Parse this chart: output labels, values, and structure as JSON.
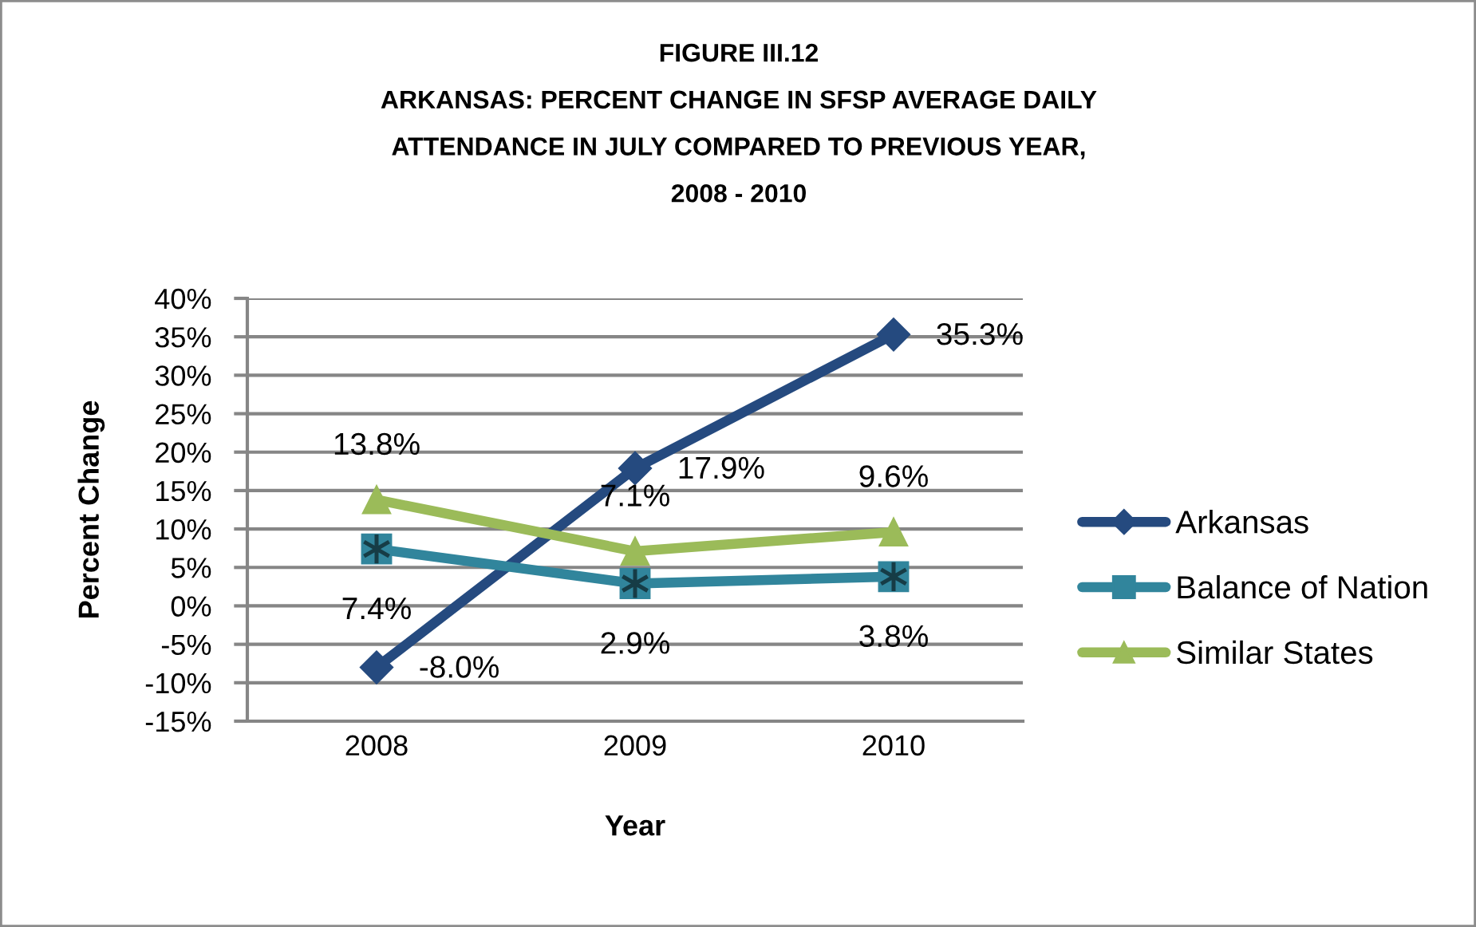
{
  "chart_data": {
    "type": "line",
    "title": "FIGURE III.12\nARKANSAS: PERCENT CHANGE IN SFSP AVERAGE DAILY\nATTENDANCE IN JULY COMPARED TO PREVIOUS YEAR,\n2008 - 2010",
    "xlabel": "Year",
    "ylabel": "Percent Change",
    "categories": [
      "2008",
      "2009",
      "2010"
    ],
    "series": [
      {
        "name": "Arkansas",
        "color": "#254a7f",
        "marker": "diamond",
        "values": [
          -8.0,
          17.9,
          35.3
        ],
        "value_labels": [
          "-8.0%",
          "17.9%",
          "35.3%"
        ]
      },
      {
        "name": "Balance of Nation",
        "color": "#31859c",
        "marker": "square",
        "values": [
          7.4,
          2.9,
          3.8
        ],
        "value_labels": [
          "7.4%",
          "2.9%",
          "3.8%"
        ]
      },
      {
        "name": "Similar States",
        "color": "#9bbb59",
        "marker": "triangle",
        "values": [
          13.8,
          7.1,
          9.6
        ],
        "value_labels": [
          "13.8%",
          "7.1%",
          "9.6%"
        ]
      }
    ],
    "ylim": [
      -15,
      40
    ],
    "yticks": [
      {
        "value": -15,
        "label": "-15%"
      },
      {
        "value": -10,
        "label": "-10%"
      },
      {
        "value": -5,
        "label": "-5%"
      },
      {
        "value": 0,
        "label": "0%"
      },
      {
        "value": 5,
        "label": "5%"
      },
      {
        "value": 10,
        "label": "10%"
      },
      {
        "value": 15,
        "label": "15%"
      },
      {
        "value": 20,
        "label": "20%"
      },
      {
        "value": 25,
        "label": "25%"
      },
      {
        "value": 30,
        "label": "30%"
      },
      {
        "value": 35,
        "label": "35%"
      },
      {
        "value": 40,
        "label": "40%"
      }
    ],
    "grid": "y",
    "legend": "right",
    "line_style": "solid"
  }
}
